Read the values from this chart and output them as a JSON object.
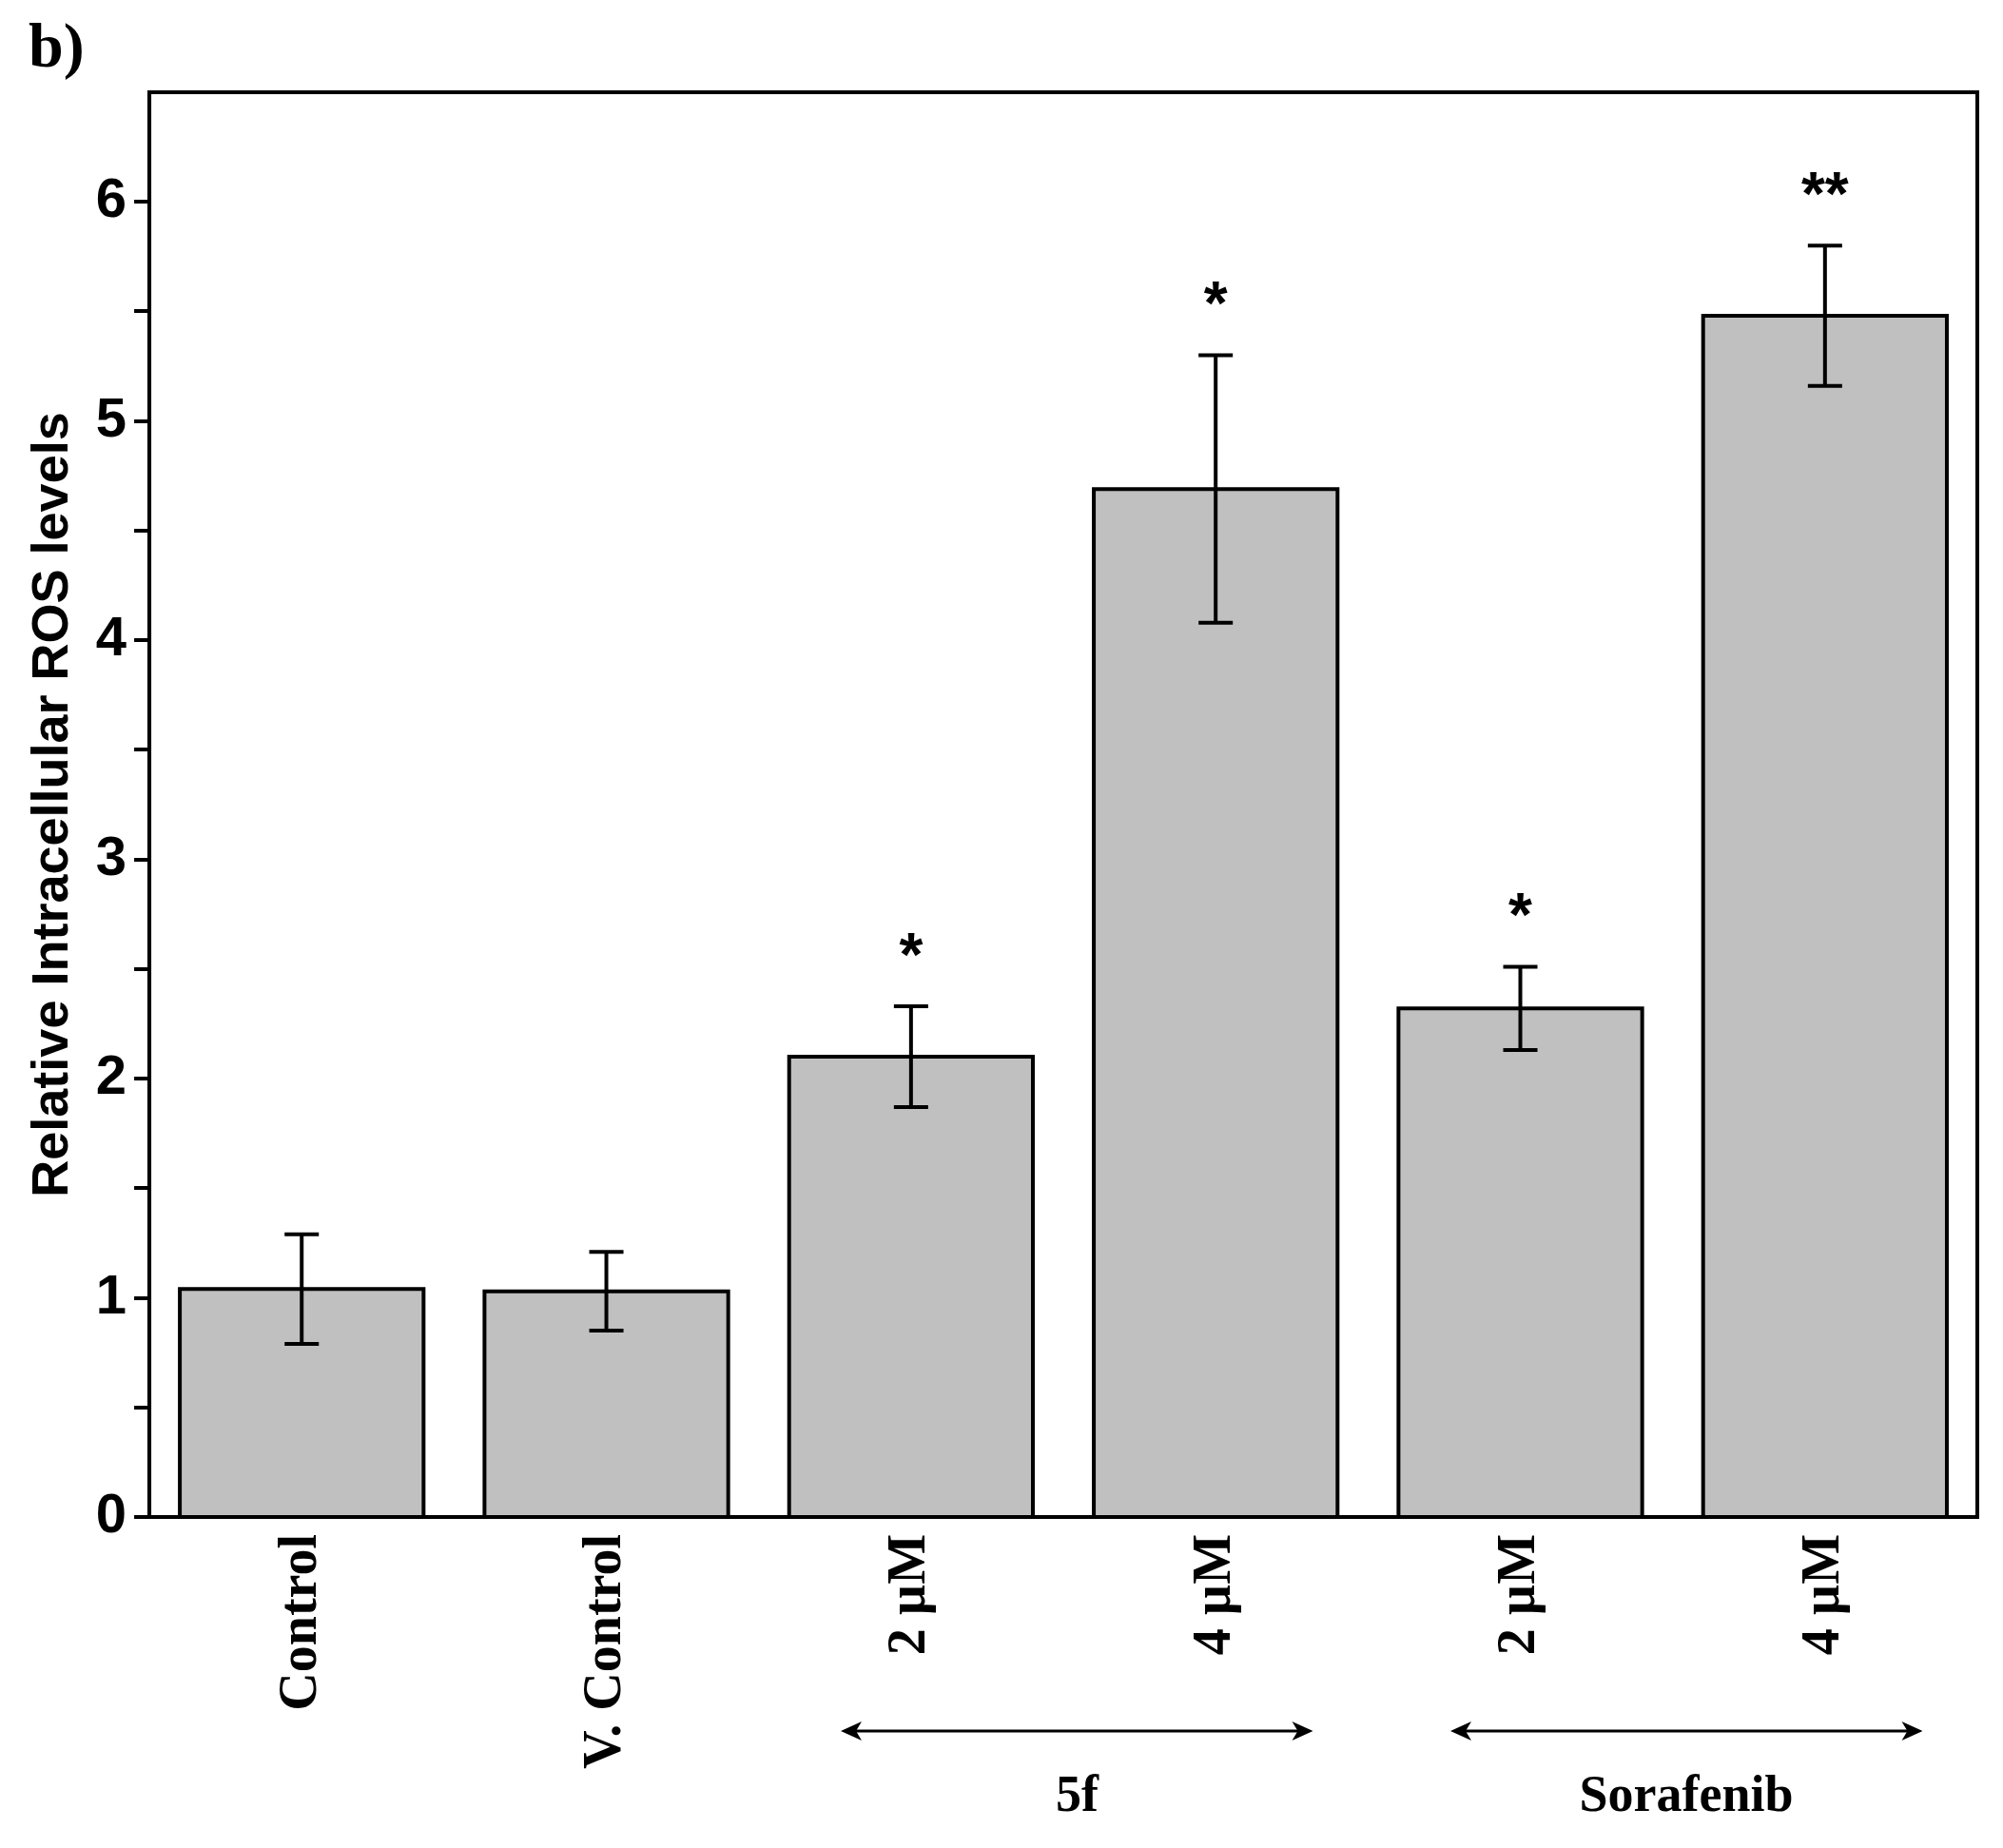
{
  "chart_data": {
    "type": "bar",
    "title": "b)",
    "ylabel": "Relative Intracellular ROS levels",
    "categories": [
      "Control",
      "V. Control",
      "2 µM",
      "4 µM",
      "2 µM",
      "4 µM"
    ],
    "values": [
      1.04,
      1.03,
      2.1,
      4.69,
      2.32,
      5.48
    ],
    "errors": [
      0.25,
      0.18,
      0.23,
      0.61,
      0.19,
      0.32
    ],
    "value_labels": [
      null,
      null,
      "*",
      "*",
      "*",
      "**"
    ],
    "color": "#c0c0c0",
    "ylim": [
      0,
      6.5
    ],
    "yticks": [
      0,
      {
        "value": 0.5,
        "label": null
      },
      1,
      {
        "value": 1.5,
        "label": null
      },
      2,
      {
        "value": 2.5,
        "label": null
      },
      3,
      {
        "value": 3.5,
        "label": null
      },
      4,
      {
        "value": 4.5,
        "label": null
      },
      5,
      {
        "value": 5.5,
        "label": null
      },
      6
    ],
    "annotations": [
      "5f",
      "Sorafenib"
    ],
    "legend": false
  }
}
